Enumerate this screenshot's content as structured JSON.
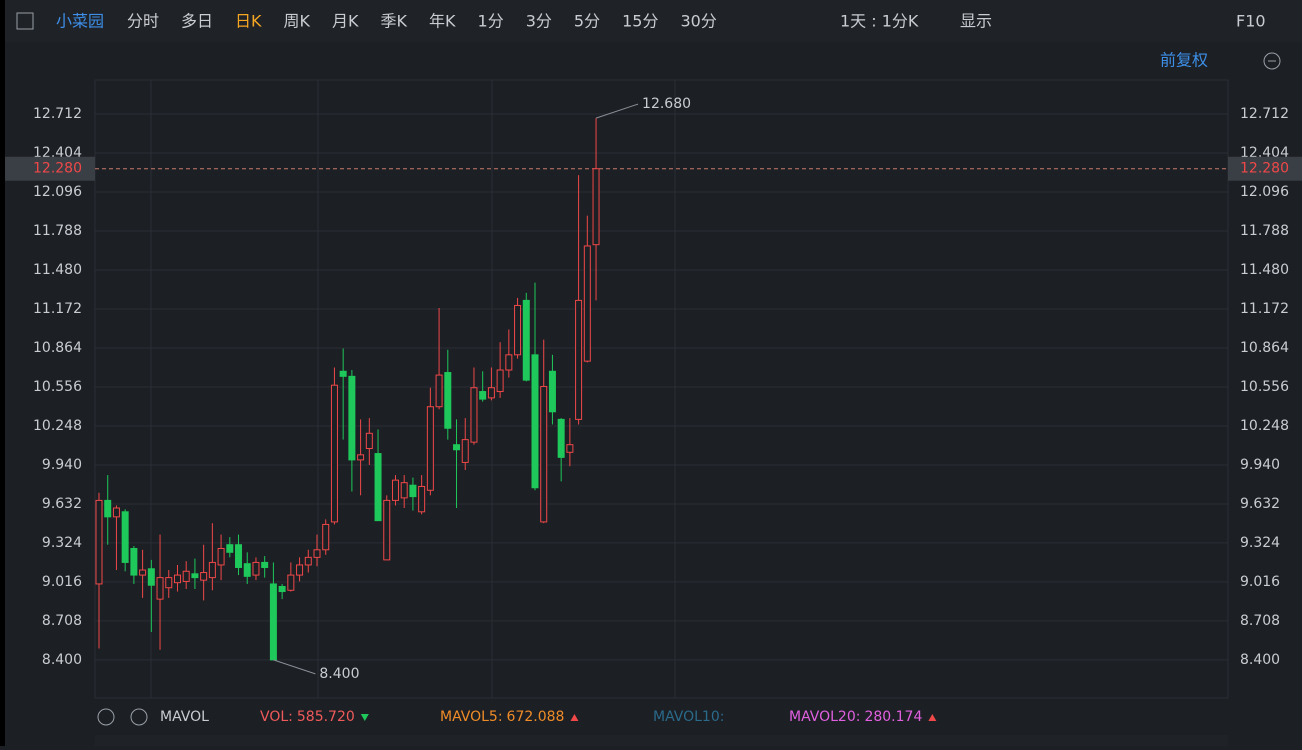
{
  "toolbar": {
    "stock": "小菜园",
    "tabs": [
      "分时",
      "多日",
      "日K",
      "周K",
      "月K",
      "季K",
      "年K",
      "1分",
      "3分",
      "5分",
      "15分",
      "30分"
    ],
    "active_tab": 2,
    "period": "1天 : 1分K",
    "display": "显示",
    "f10": "F10"
  },
  "adjust": "前复权",
  "indicator": {
    "name": "MAVOL",
    "items": [
      {
        "label": "VOL:",
        "value": "585.720",
        "color": "#f05a5a",
        "trend": "down"
      },
      {
        "label": "MAVOL5:",
        "value": "672.088",
        "color": "#f08c28",
        "trend": "up"
      },
      {
        "label": "MAVOL10:",
        "value": null,
        "color": "#2a6a8a",
        "trend": null
      },
      {
        "label": "MAVOL20:",
        "value": "280.174",
        "color": "#e060e0",
        "trend": "up"
      }
    ]
  },
  "chart_data": {
    "type": "candlestick",
    "open": [
      9.0,
      9.66,
      9.53,
      9.57,
      9.28,
      9.07,
      9.12,
      8.88,
      8.97,
      9.01,
      9.02,
      9.08,
      9.03,
      9.05,
      9.15,
      9.31,
      9.31,
      9.16,
      9.07,
      9.17,
      9.0,
      8.98,
      8.95,
      9.07,
      9.15,
      9.21,
      9.27,
      9.49,
      10.68,
      10.64,
      9.98,
      10.07,
      10.03,
      9.19,
      9.66,
      9.68,
      9.78,
      9.57,
      9.74,
      10.4,
      10.67,
      10.1,
      9.96,
      10.12,
      10.52,
      10.47,
      10.52,
      10.69,
      10.81,
      11.24,
      10.81,
      9.49,
      10.68,
      10.3,
      10.04,
      10.3,
      10.76,
      11.68
    ],
    "high": [
      9.72,
      9.86,
      9.62,
      9.59,
      9.3,
      9.27,
      9.19,
      9.39,
      9.11,
      9.15,
      9.18,
      9.2,
      9.31,
      9.48,
      9.39,
      9.37,
      9.39,
      9.25,
      9.21,
      9.22,
      9.17,
      9.0,
      9.17,
      9.21,
      9.27,
      9.39,
      9.51,
      10.71,
      10.86,
      10.69,
      10.3,
      10.31,
      10.22,
      9.7,
      9.86,
      9.86,
      9.84,
      9.86,
      10.55,
      11.18,
      10.85,
      10.3,
      10.31,
      10.71,
      10.68,
      10.71,
      10.91,
      11.01,
      11.26,
      11.3,
      11.38,
      10.93,
      10.81,
      10.31,
      10.31,
      12.23,
      11.91,
      12.68
    ],
    "low": [
      8.49,
      9.31,
      9.11,
      9.1,
      9.0,
      8.89,
      8.62,
      8.48,
      8.89,
      8.94,
      8.96,
      8.96,
      8.87,
      8.95,
      9.03,
      9.21,
      9.07,
      9.0,
      9.03,
      9.05,
      8.4,
      8.88,
      8.94,
      9.02,
      9.09,
      9.14,
      9.23,
      9.47,
      10.14,
      9.73,
      9.7,
      9.94,
      9.5,
      9.19,
      9.62,
      9.6,
      9.58,
      9.55,
      9.7,
      10.38,
      10.14,
      9.6,
      9.9,
      10.1,
      10.44,
      10.45,
      10.47,
      10.63,
      10.78,
      10.6,
      9.74,
      9.48,
      10.26,
      9.81,
      9.93,
      10.26,
      10.75,
      11.24
    ],
    "close": [
      9.66,
      9.53,
      9.6,
      9.17,
      9.07,
      9.11,
      8.99,
      9.05,
      9.05,
      9.07,
      9.1,
      9.05,
      9.09,
      9.17,
      9.28,
      9.25,
      9.13,
      9.06,
      9.17,
      9.13,
      8.4,
      8.94,
      9.07,
      9.15,
      9.21,
      9.27,
      9.47,
      10.57,
      10.64,
      9.98,
      10.02,
      10.19,
      9.5,
      9.66,
      9.82,
      9.8,
      9.69,
      9.77,
      10.4,
      10.65,
      10.23,
      10.06,
      10.14,
      10.55,
      10.46,
      10.55,
      10.69,
      10.81,
      11.2,
      10.61,
      9.76,
      10.56,
      10.36,
      10.0,
      10.1,
      11.24,
      11.67,
      12.28
    ],
    "up_color": "#f04848",
    "down_color": "#1ec85a",
    "ylim": [
      8.099,
      12.981
    ],
    "yticks": [
      12.712,
      12.404,
      12.096,
      11.788,
      {
        "value": 11.48,
        "label": "11.480"
      },
      11.172,
      10.864,
      10.556,
      10.248,
      {
        "value": 9.94,
        "label": "9.940"
      },
      9.632,
      9.324,
      9.016,
      8.708,
      {
        "value": 8.4,
        "label": "8.400"
      }
    ],
    "grid": true,
    "last_price": {
      "value": 12.28,
      "label": "12.280"
    },
    "max_label": {
      "value": 12.68,
      "label": "12.680"
    },
    "min_label": {
      "value": 8.4,
      "label": "8.400"
    }
  }
}
